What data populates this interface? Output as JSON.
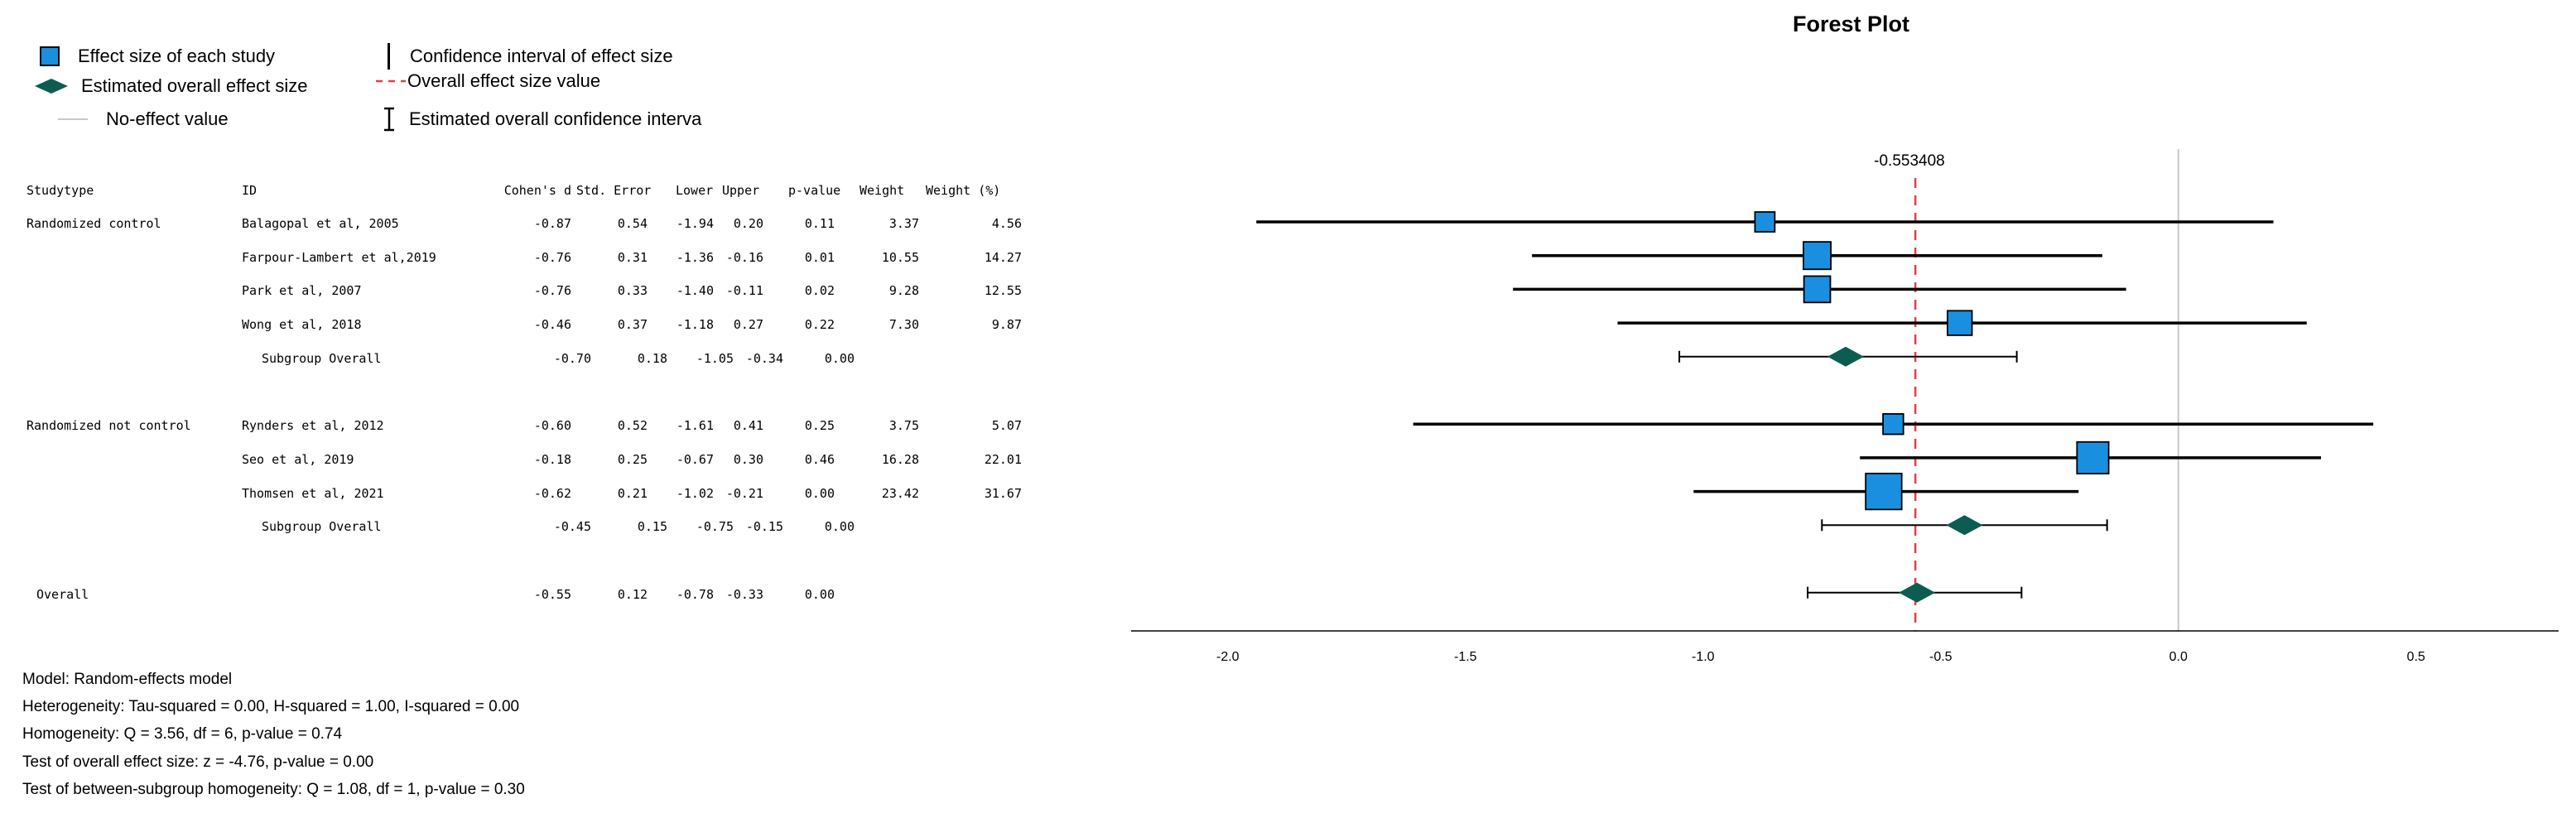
{
  "legend": {
    "effect_size": "Effect size of each study",
    "overall_effect": "Estimated overall effect size",
    "no_effect": "No-effect value",
    "ci_effect": "Confidence interval of effect size",
    "overall_value": "Overall effect size value",
    "overall_ci": "Estimated overall confidence interva",
    "colors": {
      "study": "#1a8fe0",
      "diamond": "#0d5c52",
      "ref_line": "#e0404a",
      "no_effect": "#c8c8c8"
    }
  },
  "table": {
    "headers": {
      "studytype": "Studytype",
      "id": "ID",
      "d": "Cohen's d",
      "se": "Std. Error",
      "lower": "Lower",
      "upper": "Upper",
      "p": "p-value",
      "weight": "Weight",
      "weight_pct": "Weight (%)"
    },
    "rows": [
      {
        "studytype": "Randomized control",
        "id": "Balagopal et al, 2005",
        "d": "-0.87",
        "se": "0.54",
        "lower": "-1.94",
        "upper": "0.20",
        "p": "0.11",
        "weight": "3.37",
        "weight_pct": "4.56"
      },
      {
        "studytype": "",
        "id": "Farpour-Lambert et al,2019",
        "d": "-0.76",
        "se": "0.31",
        "lower": "-1.36",
        "upper": "-0.16",
        "p": "0.01",
        "weight": "10.55",
        "weight_pct": "14.27"
      },
      {
        "studytype": "",
        "id": "Park et al, 2007",
        "d": "-0.76",
        "se": "0.33",
        "lower": "-1.40",
        "upper": "-0.11",
        "p": "0.02",
        "weight": "9.28",
        "weight_pct": "12.55"
      },
      {
        "studytype": "",
        "id": "Wong et al, 2018",
        "d": "-0.46",
        "se": "0.37",
        "lower": "-1.18",
        "upper": "0.27",
        "p": "0.22",
        "weight": "7.30",
        "weight_pct": "9.87"
      },
      {
        "studytype": "",
        "id": "Subgroup Overall",
        "d": "-0.70",
        "se": "0.18",
        "lower": "-1.05",
        "upper": "-0.34",
        "p": "0.00",
        "weight": "",
        "weight_pct": "",
        "summary": true
      },
      {
        "studytype": "Randomized not control",
        "id": "Rynders et al, 2012",
        "d": "-0.60",
        "se": "0.52",
        "lower": "-1.61",
        "upper": "0.41",
        "p": "0.25",
        "weight": "3.75",
        "weight_pct": "5.07"
      },
      {
        "studytype": "",
        "id": "Seo et al, 2019",
        "d": "-0.18",
        "se": "0.25",
        "lower": "-0.67",
        "upper": "0.30",
        "p": "0.46",
        "weight": "16.28",
        "weight_pct": "22.01"
      },
      {
        "studytype": "",
        "id": "Thomsen et al, 2021",
        "d": "-0.62",
        "se": "0.21",
        "lower": "-1.02",
        "upper": "-0.21",
        "p": "0.00",
        "weight": "23.42",
        "weight_pct": "31.67"
      },
      {
        "studytype": "",
        "id": "Subgroup Overall",
        "d": "-0.45",
        "se": "0.15",
        "lower": "-0.75",
        "upper": "-0.15",
        "p": "0.00",
        "weight": "",
        "weight_pct": "",
        "summary": true
      },
      {
        "studytype": "Overall",
        "id": "",
        "d": "-0.55",
        "se": "0.12",
        "lower": "-0.78",
        "upper": "-0.33",
        "p": "0.00",
        "weight": "",
        "weight_pct": "",
        "summary": true,
        "overall": true
      }
    ]
  },
  "notes": [
    "Model: Random-effects model",
    "Heterogeneity: Tau-squared = 0.00, H-squared = 1.00, I-squared = 0.00",
    "Homogeneity: Q = 3.56, df = 6, p-value = 0.74",
    "Test of overall effect size: z = -4.76, p-value = 0.00",
    "Test of between-subgroup homogeneity: Q = 1.08, df = 1, p-value = 0.30"
  ],
  "chart_data": {
    "type": "forest",
    "title": "Forest Plot",
    "overall_label": "-0.553408",
    "overall_value": -0.553408,
    "no_effect_value": 0,
    "xlim": [
      -2.2,
      0.8
    ],
    "xticks": [
      -2.0,
      -1.5,
      -1.0,
      -0.5,
      0.0,
      0.5
    ],
    "xtick_labels": [
      "-2.0",
      "-1.5",
      "-1.0",
      "-0.5",
      "0.0",
      "0.5"
    ],
    "rows": [
      {
        "kind": "study",
        "est": -0.87,
        "lo": -1.94,
        "hi": 0.2,
        "weight_pct": 4.56
      },
      {
        "kind": "study",
        "est": -0.76,
        "lo": -1.36,
        "hi": -0.16,
        "weight_pct": 14.27
      },
      {
        "kind": "study",
        "est": -0.76,
        "lo": -1.4,
        "hi": -0.11,
        "weight_pct": 12.55
      },
      {
        "kind": "study",
        "est": -0.46,
        "lo": -1.18,
        "hi": 0.27,
        "weight_pct": 9.87
      },
      {
        "kind": "summary",
        "est": -0.7,
        "lo": -1.05,
        "hi": -0.34
      },
      {
        "kind": "study",
        "est": -0.6,
        "lo": -1.61,
        "hi": 0.41,
        "weight_pct": 5.07
      },
      {
        "kind": "study",
        "est": -0.18,
        "lo": -0.67,
        "hi": 0.3,
        "weight_pct": 22.01
      },
      {
        "kind": "study",
        "est": -0.62,
        "lo": -1.02,
        "hi": -0.21,
        "weight_pct": 31.67
      },
      {
        "kind": "summary",
        "est": -0.45,
        "lo": -0.75,
        "hi": -0.15
      },
      {
        "kind": "summary",
        "est": -0.55,
        "lo": -0.78,
        "hi": -0.33
      }
    ]
  }
}
